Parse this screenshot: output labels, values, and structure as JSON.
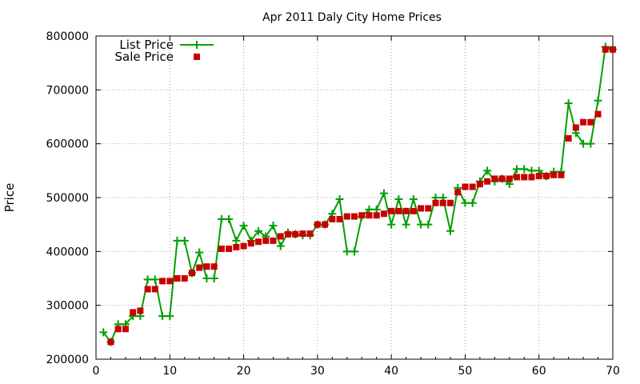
{
  "chart_data": {
    "type": "line",
    "title": "Apr 2011 Daly City Home Prices",
    "xlabel": "",
    "ylabel": "Price",
    "xlim": [
      0,
      70
    ],
    "ylim": [
      200000,
      800000
    ],
    "xticks": [
      0,
      10,
      20,
      30,
      40,
      50,
      60,
      70
    ],
    "yticks": [
      200000,
      300000,
      400000,
      500000,
      600000,
      700000,
      800000
    ],
    "xtick_labels": [
      "0",
      "10",
      "20",
      "30",
      "40",
      "50",
      "60",
      "70"
    ],
    "ytick_labels": [
      "200000",
      "300000",
      "400000",
      "500000",
      "600000",
      "700000",
      "800000"
    ],
    "grid": true,
    "legend_position": "top-left",
    "x": [
      1,
      2,
      3,
      4,
      5,
      6,
      7,
      8,
      9,
      10,
      11,
      12,
      13,
      14,
      15,
      16,
      17,
      18,
      19,
      20,
      21,
      22,
      23,
      24,
      25,
      26,
      27,
      28,
      29,
      30,
      31,
      32,
      33,
      34,
      35,
      36,
      37,
      38,
      39,
      40,
      41,
      42,
      43,
      44,
      45,
      46,
      47,
      48,
      49,
      50,
      51,
      52,
      53,
      54,
      55,
      56,
      57,
      58,
      59,
      60,
      61,
      62,
      63,
      64,
      65,
      66,
      67,
      68,
      69,
      70
    ],
    "series": [
      {
        "name": "List Price",
        "style": "line-plus",
        "color": "#00a000",
        "values": [
          250000,
          232000,
          265000,
          265000,
          280000,
          280000,
          348000,
          348000,
          280000,
          280000,
          420000,
          420000,
          360000,
          398000,
          350000,
          350000,
          460000,
          460000,
          420000,
          448000,
          420000,
          438000,
          428000,
          448000,
          410000,
          435000,
          432000,
          430000,
          430000,
          450000,
          450000,
          470000,
          497000,
          400000,
          400000,
          465000,
          478000,
          478000,
          508000,
          450000,
          497000,
          450000,
          497000,
          450000,
          450000,
          500000,
          500000,
          438000,
          518000,
          490000,
          490000,
          530000,
          550000,
          530000,
          535000,
          525000,
          553000,
          553000,
          550000,
          550000,
          540000,
          548000,
          548000,
          675000,
          620000,
          600000,
          600000,
          680000,
          780000,
          775000
        ]
      },
      {
        "name": "Sale Price",
        "style": "square",
        "color": "#c80000",
        "values": [
          null,
          232000,
          256000,
          256000,
          287000,
          290000,
          330000,
          330000,
          345000,
          345000,
          350000,
          350000,
          360000,
          370000,
          372000,
          372000,
          405000,
          405000,
          408000,
          410000,
          415000,
          418000,
          420000,
          420000,
          428000,
          432000,
          432000,
          433000,
          433000,
          450000,
          450000,
          460000,
          460000,
          465000,
          465000,
          467000,
          467000,
          467000,
          470000,
          475000,
          475000,
          475000,
          475000,
          480000,
          480000,
          490000,
          490000,
          490000,
          510000,
          520000,
          520000,
          525000,
          530000,
          535000,
          535000,
          535000,
          538000,
          538000,
          538000,
          540000,
          540000,
          542000,
          542000,
          610000,
          630000,
          640000,
          640000,
          655000,
          775000,
          775000
        ]
      }
    ]
  }
}
